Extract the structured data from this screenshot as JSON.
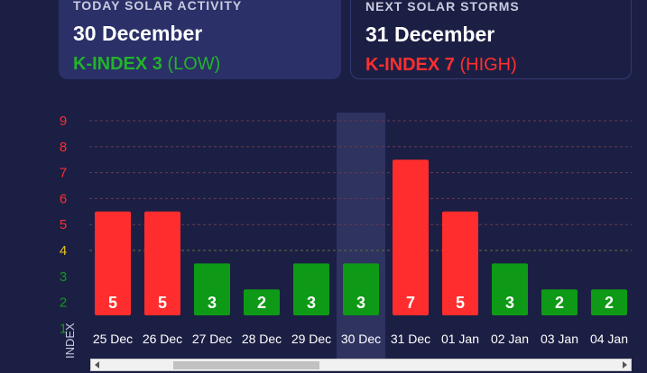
{
  "cards": {
    "today": {
      "caption": "TODAY SOLAR ACTIVITY",
      "date": "30 December",
      "k_label": "K-INDEX 3",
      "level": "(LOW)",
      "color": "#22b32a"
    },
    "next": {
      "caption": "NEXT SOLAR STORMS",
      "date": "31 December",
      "k_label": "K-INDEX 7",
      "level": "(HIGH)",
      "color": "#ff2f2f"
    }
  },
  "chart_data": {
    "type": "bar",
    "categories": [
      "25 Dec",
      "26 Dec",
      "27 Dec",
      "28 Dec",
      "29 Dec",
      "30 Dec",
      "31 Dec",
      "01 Jan",
      "02 Jan",
      "03 Jan",
      "04 Jan"
    ],
    "values": [
      5,
      5,
      3,
      2,
      3,
      3,
      7,
      5,
      3,
      2,
      2
    ],
    "highlighted_category": "30 Dec",
    "ylim": [
      1,
      9
    ],
    "y_ticks": [
      1,
      2,
      3,
      4,
      5,
      6,
      7,
      8,
      9
    ],
    "ylabel": "INDEX",
    "grid": true,
    "colors": {
      "low": "#0e9a16",
      "high": "#ff2d2d",
      "moderate": "#e8c21f"
    }
  },
  "scrollbar": {
    "left_arrow": "scroll-left",
    "right_arrow": "scroll-right"
  }
}
